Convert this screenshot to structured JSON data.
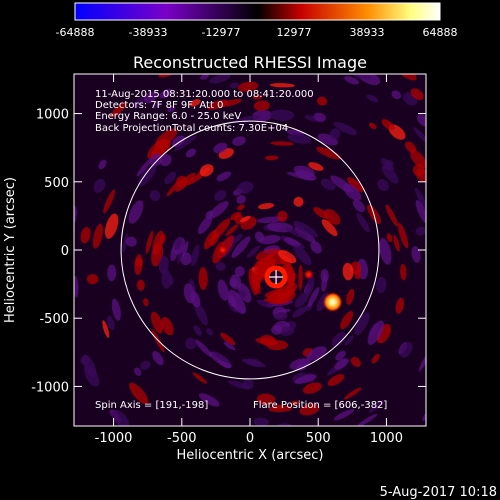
{
  "chart_data": {
    "type": "heatmap",
    "title": "Reconstructed RHESSI Image",
    "xlabel": "Heliocentric X (arcsec)",
    "ylabel": "Heliocentric Y (arcsec)",
    "xlim": [
      -1290,
      1290
    ],
    "ylim": [
      -1290,
      1290
    ],
    "x_ticks": [
      "-1000",
      "-500",
      "0",
      "500",
      "1000"
    ],
    "y_ticks": [
      "-1000",
      "-500",
      "0",
      "500",
      "1000"
    ],
    "colorbar": {
      "range": [
        -64888,
        64888
      ],
      "tick_labels": [
        "-64888",
        "-38933",
        "-12977",
        "12977",
        "38933",
        "64888"
      ],
      "colors": [
        "#0000ff",
        "#7a00c8",
        "#000000",
        "#c80000",
        "#ff8c00",
        "#ffff80",
        "#ffffff"
      ]
    },
    "solar_limb": {
      "center": [
        0,
        0
      ],
      "radius_arcsec": 945
    },
    "sources": [
      {
        "x": 606,
        "y": -382,
        "level": "brightest"
      },
      {
        "x": 191,
        "y": -198,
        "level": "bright ring"
      }
    ],
    "annotations": {
      "time_range": "11-Aug-2015 08:31:20.000 to 08:41:20.000",
      "detectors": "Detectors: 7F 8F 9F, Att 0",
      "energy": "Energy Range: 6.0 - 25.0 keV",
      "method": "Back Projection",
      "counts": "Total counts: 7.30E+04",
      "spin_axis": "Spin Axis = [191,-198]",
      "flare_position": "Flare Position = [606,-382]"
    },
    "footer_date": "5-Aug-2017 10:18"
  }
}
